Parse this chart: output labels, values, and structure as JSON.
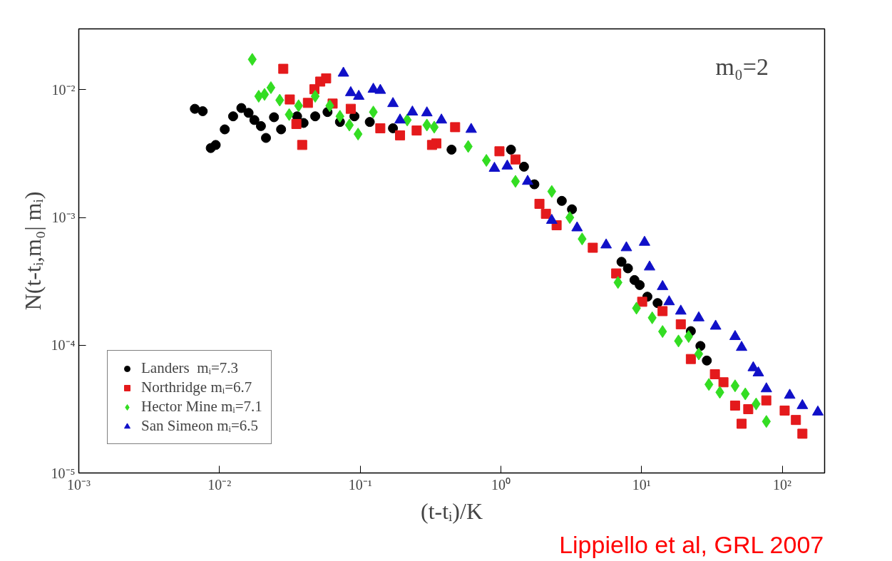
{
  "chart_data": {
    "type": "scatter",
    "xlabel": "(t-tᵢ)/K",
    "ylabel": "N(t-tᵢ,m₀| mᵢ)",
    "log": "xy",
    "grid": false,
    "legend": "bottom left",
    "xlim": [
      0.001,
      200
    ],
    "ylim": [
      1e-05,
      0.03
    ],
    "xticks": [
      {
        "value": 0.001,
        "label": "10⁻³"
      },
      {
        "value": 0.01,
        "label": "10⁻²"
      },
      {
        "value": 0.1,
        "label": "10⁻¹"
      },
      {
        "value": 1,
        "label": "10⁰"
      },
      {
        "value": 10,
        "label": "10¹"
      },
      {
        "value": 100,
        "label": "10²"
      }
    ],
    "yticks": [
      {
        "value": 1e-05,
        "label": "10⁻⁵"
      },
      {
        "value": 0.0001,
        "label": "10⁻⁴"
      },
      {
        "value": 0.001,
        "label": "10⁻³"
      },
      {
        "value": 0.01,
        "label": "10⁻²"
      }
    ],
    "annotations": [
      "m₀=2",
      "Lippiello et al, GRL 2007"
    ],
    "series": [
      {
        "name": "Landers  mᵢ=7.3",
        "color": "#000000",
        "marker": "circle",
        "x": [
          0.00668,
          0.0076,
          0.00867,
          0.0094,
          0.0109,
          0.0125,
          0.0143,
          0.0161,
          0.0177,
          0.0197,
          0.0214,
          0.0244,
          0.0274,
          0.0356,
          0.0396,
          0.0479,
          0.0586,
          0.0718,
          0.091,
          0.117,
          0.171,
          0.244,
          0.446,
          1.18,
          1.46,
          1.73,
          2.71,
          3.2,
          7.2,
          8.0,
          8.9,
          9.7,
          11.0,
          13.0,
          19.0,
          22.4,
          26.2,
          29.1
        ],
        "values": [
          0.0071,
          0.0068,
          0.0035,
          0.0037,
          0.0049,
          0.0062,
          0.0072,
          0.0066,
          0.0058,
          0.0052,
          0.0042,
          0.0061,
          0.0049,
          0.0062,
          0.0055,
          0.0062,
          0.0067,
          0.0056,
          0.0062,
          0.0056,
          0.005,
          null,
          0.0034,
          0.0034,
          0.0025,
          0.00182,
          0.00135,
          0.00116,
          0.00045,
          0.0004,
          0.000324,
          0.000296,
          0.00024,
          0.000214,
          null,
          0.000129,
          9.87e-05,
          7.59e-05
        ]
      },
      {
        "name": "Northridge mᵢ=6.7",
        "color": "#e41a1c",
        "marker": "square",
        "x": [
          0.0284,
          0.0316,
          0.0387,
          0.0352,
          0.0425,
          0.0473,
          0.052,
          0.0573,
          0.0637,
          0.0857,
          0.0966,
          0.139,
          0.192,
          0.252,
          0.348,
          0.324,
          0.473,
          0.977,
          1.27,
          1.88,
          2.09,
          2.49,
          4.5,
          6.6,
          10.1,
          14.1,
          19.0,
          22.4,
          33.2,
          38.2,
          46.2,
          51.4,
          57.3,
          77,
          104,
          125,
          139
        ],
        "values": [
          0.0146,
          0.0084,
          0.0037,
          0.0054,
          0.0079,
          0.0101,
          0.0116,
          0.0123,
          0.0078,
          0.0071,
          null,
          0.005,
          0.0044,
          0.0048,
          0.0038,
          0.0037,
          0.0051,
          0.0033,
          0.00285,
          0.00128,
          0.00107,
          0.00087,
          0.00058,
          0.000365,
          0.000219,
          0.000185,
          0.000146,
          7.8e-05,
          5.93e-05,
          5.13e-05,
          3.37e-05,
          2.43e-05,
          3.16e-05,
          3.7e-05,
          3.08e-05,
          2.6e-05,
          2.03e-05
        ]
      },
      {
        "name": "Hector Mine mᵢ=7.1",
        "color": "#33dd22",
        "marker": "diamond",
        "x": [
          0.0171,
          0.019,
          0.0209,
          0.0232,
          0.0268,
          0.0313,
          0.0365,
          0.0479,
          0.0608,
          0.0718,
          0.0838,
          0.0966,
          0.124,
          0.216,
          0.336,
          0.298,
          0.586,
          0.789,
          1.27,
          2.3,
          3.09,
          3.78,
          6.8,
          9.2,
          11.9,
          14.1,
          18.3,
          21.6,
          25.5,
          30.1,
          36.0,
          46.2,
          54.6,
          65.2,
          77.1
        ],
        "values": [
          0.0173,
          0.0089,
          0.0092,
          0.0104,
          0.0083,
          0.0064,
          0.0075,
          0.0089,
          0.0075,
          0.0062,
          0.0053,
          0.0045,
          0.0067,
          0.0058,
          0.0051,
          0.0053,
          0.0036,
          0.0028,
          0.00192,
          0.0016,
          0.001,
          0.00068,
          0.00031,
          0.000195,
          0.000164,
          0.000128,
          0.000108,
          0.000117,
          8.55e-05,
          4.93e-05,
          4.28e-05,
          4.81e-05,
          4.16e-05,
          3.47e-05,
          2.53e-05
        ]
      },
      {
        "name": "San Simeon mᵢ=6.5",
        "color": "#1010c8",
        "marker": "triangle",
        "x": [
          0.076,
          0.0857,
          0.0977,
          0.124,
          0.139,
          0.171,
          0.192,
          0.235,
          0.284,
          0.298,
          0.378,
          0.615,
          0.9,
          1.11,
          1.55,
          2.3,
          3.48,
          5.6,
          7.8,
          10.5,
          11.4,
          14.1,
          15.7,
          19.0,
          25.5,
          33.6,
          46.2,
          51.4,
          62.2,
          67.6,
          77.1,
          113,
          139,
          179
        ],
        "values": [
          0.0135,
          0.0095,
          0.0089,
          0.0101,
          0.0099,
          0.0078,
          0.0058,
          0.0067,
          null,
          0.0066,
          0.0058,
          0.0049,
          0.00243,
          0.00253,
          0.00192,
          0.00095,
          0.00083,
          0.00061,
          0.00058,
          0.00064,
          0.00041,
          0.000288,
          0.000219,
          0.000185,
          0.000164,
          0.000141,
          0.000117,
          9.62e-05,
          6.67e-05,
          6.08e-05,
          4.56e-05,
          4.06e-05,
          3.37e-05,
          3e-05
        ]
      }
    ]
  }
}
